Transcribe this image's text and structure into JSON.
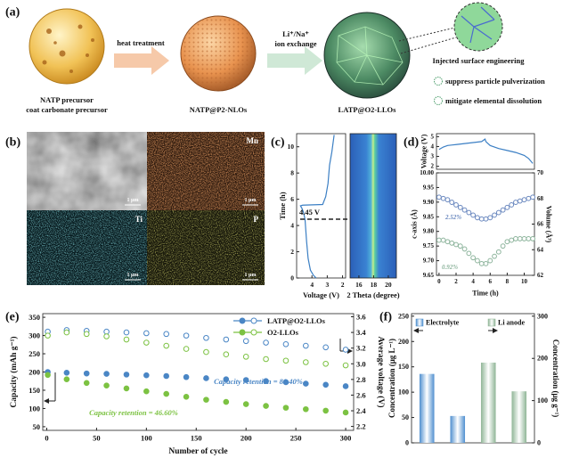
{
  "panel_labels": [
    "(a)",
    "(b)",
    "(c)",
    "(d)",
    "(e)",
    "(f)"
  ],
  "scheme": {
    "steps": [
      {
        "lines": [
          "NATP precursor",
          "coat carbonate precursor"
        ]
      },
      {
        "lines": [
          "NATP@P2-NLOs"
        ]
      },
      {
        "lines": [
          "LATP@O2-LLOs"
        ]
      }
    ],
    "arrows": [
      {
        "lines": [
          "heat treatment"
        ]
      },
      {
        "lines": [
          "Li⁺/Na⁺",
          "ion exchange"
        ]
      }
    ],
    "inset": "Injected surface engineering",
    "benefits": [
      "suppress particle pulverization",
      "mitigate elemental dissolution"
    ]
  },
  "mapping": {
    "maps": [
      "Mn",
      "Ti",
      "P"
    ],
    "scale_bar": "1 μm"
  },
  "chart_data": [
    {
      "type": "line",
      "xlabel": "Voltage (V)",
      "ylabel": "Time (h)",
      "xlim": [
        5,
        1.8
      ],
      "xticks": [
        4,
        3,
        2
      ],
      "ylim": [
        0,
        11
      ],
      "yticks": [
        0,
        2,
        4,
        6,
        8,
        10
      ],
      "color": "#3b7fc4",
      "annotation": "4.45 V",
      "x": [
        3.72,
        3.9,
        4.1,
        4.25,
        4.35,
        4.45,
        4.55,
        4.65,
        4.75,
        4.6,
        3.3,
        3.1,
        2.95,
        2.85,
        2.7,
        2.55
      ],
      "values": [
        0,
        0.2,
        0.6,
        1.5,
        2.8,
        4.45,
        5.0,
        5.3,
        5.5,
        5.55,
        5.6,
        6.2,
        7.2,
        8.6,
        9.6,
        10.9
      ]
    },
    {
      "type": "heatmap",
      "xlabel": "2 Theta (degree)",
      "xlim": [
        14.8,
        21.1
      ],
      "xticks": [
        16,
        18,
        20
      ]
    },
    {
      "type": "line",
      "ylabel": "Voltage (V)",
      "xlim": [
        -0.3,
        11.2
      ],
      "ylim": [
        1.7,
        5.3
      ],
      "yticks": [
        2,
        3,
        4,
        5
      ],
      "color": "#3b7fc4",
      "x": [
        0,
        0.5,
        1,
        2,
        3,
        4,
        5,
        5.4,
        5.5,
        6,
        7,
        8,
        9,
        10,
        10.5,
        11
      ],
      "values": [
        3.7,
        3.95,
        4.1,
        4.2,
        4.3,
        4.4,
        4.5,
        4.75,
        4.5,
        4.1,
        3.8,
        3.6,
        3.4,
        3.1,
        2.8,
        2.3
      ]
    },
    {
      "type": "scatter",
      "xlabel": "Time (h)",
      "ylabel": "c-axis (Å)",
      "y2label": "Volume (Å³)",
      "xlim": [
        -0.3,
        11.2
      ],
      "xticks": [
        0,
        2,
        4,
        6,
        8,
        10
      ],
      "ylim": [
        9.65,
        10.0
      ],
      "yticks": [
        9.65,
        {
          "value": 9.7,
          "label": "9.70"
        },
        9.75,
        {
          "value": 9.8,
          "label": "9.80"
        },
        9.85,
        {
          "value": 9.9,
          "label": "9.90"
        },
        9.95,
        {
          "value": 10,
          "label": "10.00"
        }
      ],
      "y2lim": [
        62,
        70
      ],
      "y2ticks": [
        62,
        64,
        66,
        68,
        70
      ],
      "x": [
        0,
        0.5,
        1,
        1.5,
        2,
        2.5,
        3,
        3.5,
        4,
        4.5,
        5,
        5.5,
        6,
        6.5,
        7,
        7.5,
        8,
        8.5,
        9,
        9.5,
        10,
        10.5,
        11
      ],
      "series": [
        {
          "color": "#6a88bf",
          "axis": "y2",
          "annotation": "2.52%",
          "values": [
            68.1,
            68.0,
            67.9,
            67.7,
            67.5,
            67.3,
            67.1,
            66.9,
            66.7,
            66.5,
            66.4,
            66.4,
            66.5,
            66.7,
            66.9,
            67.1,
            67.3,
            67.5,
            67.7,
            67.8,
            67.9,
            68.0,
            68.1
          ]
        },
        {
          "color": "#8db49c",
          "annotation": "0.92%",
          "values": [
            9.77,
            9.77,
            9.765,
            9.76,
            9.755,
            9.75,
            9.74,
            9.725,
            9.71,
            9.7,
            9.69,
            9.69,
            9.7,
            9.715,
            9.73,
            9.75,
            9.765,
            9.77,
            9.775,
            9.775,
            9.775,
            9.775,
            9.775
          ]
        }
      ]
    },
    {
      "type": "scatter",
      "xlabel": "Number of cycle",
      "ylabel": "Capacity (mAh g⁻¹)",
      "y2label": "Average voltage (V)",
      "xlim": [
        -4,
        308
      ],
      "xticks": [
        0,
        50,
        100,
        150,
        200,
        250,
        300
      ],
      "ylim": [
        40,
        360
      ],
      "yticks": [
        50,
        100,
        150,
        200,
        250,
        300,
        350
      ],
      "y2lim": [
        2.15,
        3.64
      ],
      "y2ticks": [
        2.2,
        2.4,
        2.6,
        2.8,
        {
          "value": 3,
          "label": "3.0"
        },
        3.2,
        3.4,
        3.6
      ],
      "x": [
        1,
        20,
        40,
        60,
        80,
        100,
        120,
        140,
        160,
        180,
        200,
        220,
        240,
        260,
        280,
        300
      ],
      "series": [
        {
          "name": "LATP@O2-LLOs",
          "color": "#4a86c5",
          "filled": true,
          "annotation": "Capacity retention = 80.40%",
          "values": [
            200,
            198,
            196,
            195,
            193,
            191,
            189,
            186,
            183,
            180,
            178,
            175,
            172,
            168,
            165,
            161
          ],
          "y2_values": [
            3.41,
            3.43,
            3.42,
            3.41,
            3.4,
            3.39,
            3.38,
            3.36,
            3.33,
            3.31,
            3.29,
            3.27,
            3.25,
            3.23,
            3.21,
            3.18
          ]
        },
        {
          "name": "O2-LLOs",
          "color": "#7cc242",
          "filled": true,
          "annotation": "Capacity retention = 46.60%",
          "values": [
            192,
            180,
            170,
            163,
            155,
            147,
            140,
            132,
            124,
            118,
            112,
            107,
            102,
            98,
            94,
            89
          ],
          "y2_values": [
            3.36,
            3.4,
            3.38,
            3.35,
            3.31,
            3.27,
            3.23,
            3.19,
            3.15,
            3.12,
            3.09,
            3.06,
            3.04,
            3.02,
            3.0,
            2.98
          ]
        }
      ]
    },
    {
      "type": "bar",
      "ylabel": "Concentration (μg L⁻¹)",
      "y2label": "Concentration (μg g⁻¹)",
      "ylim": [
        0,
        255
      ],
      "yticks": [
        0,
        50,
        100,
        150,
        200,
        250
      ],
      "y2lim": [
        0,
        306
      ],
      "y2ticks": [
        0,
        100,
        200,
        300
      ],
      "categories": [
        null,
        null,
        null,
        null
      ],
      "series": [
        {
          "name": "Electrolyte",
          "color": "#4f8fcf",
          "values": [
            136,
            53,
            null,
            null
          ]
        },
        {
          "name": "Li anode",
          "axis": "y2",
          "color": "#8fb596",
          "values": [
            null,
            null,
            190,
            122
          ]
        }
      ]
    }
  ]
}
